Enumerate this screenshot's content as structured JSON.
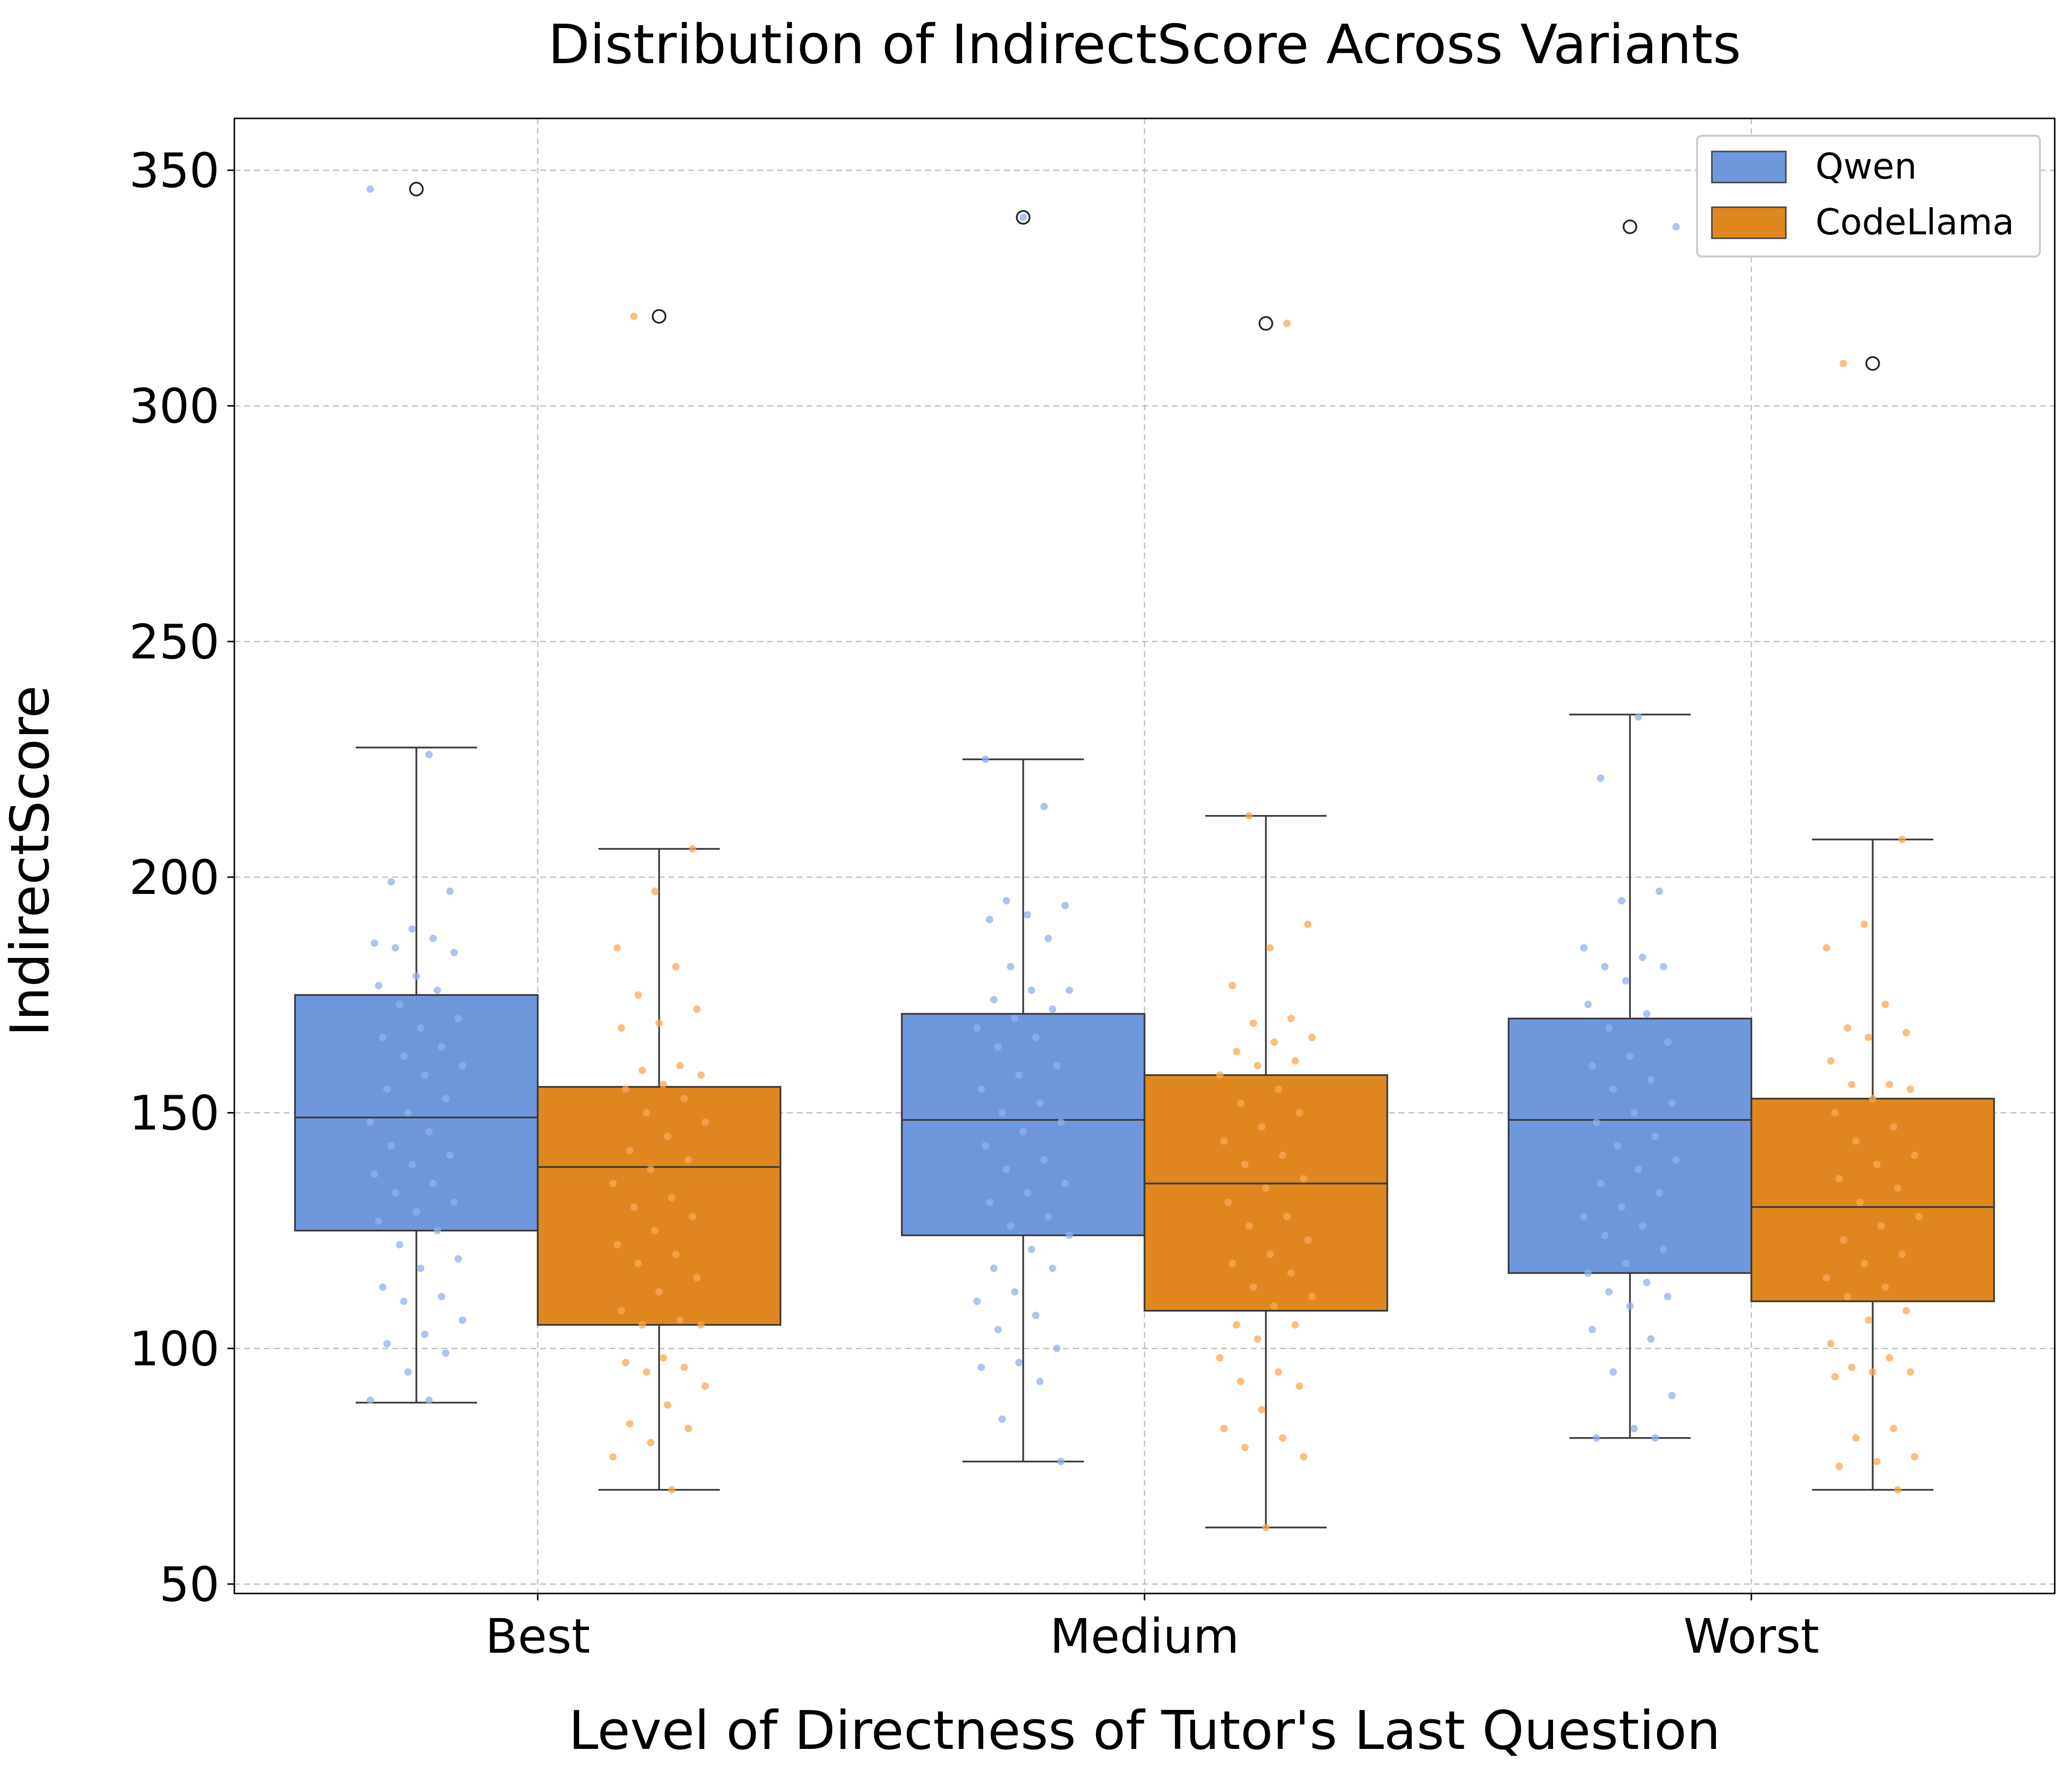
{
  "chart_data": {
    "type": "box",
    "title": "Distribution of IndirectScore Across Variants",
    "xlabel": "Level of Directness of Tutor's Last Question",
    "ylabel": "IndirectScore",
    "categories": [
      "Best",
      "Medium",
      "Worst"
    ],
    "ylim": [
      48,
      361
    ],
    "yticks": [
      50,
      100,
      150,
      200,
      250,
      300,
      350
    ],
    "ytick_labels": [
      "50",
      "100",
      "150",
      "200",
      "250",
      "300",
      "350"
    ],
    "grid": true,
    "legend_position": "top-right",
    "series": [
      {
        "name": "Qwen",
        "color": "#6f98dc",
        "point_color": "#8fb0ee",
        "boxes": [
          {
            "whisker_low": 88.5,
            "q1": 125,
            "median": 149,
            "q3": 175,
            "whisker_high": 227.5,
            "outliers": [
              346
            ]
          },
          {
            "whisker_low": 76,
            "q1": 124,
            "median": 148.5,
            "q3": 171,
            "whisker_high": 225,
            "outliers": [
              340
            ]
          },
          {
            "whisker_low": 81,
            "q1": 116,
            "median": 148.5,
            "q3": 170,
            "whisker_high": 234.5,
            "outliers": [
              338
            ]
          }
        ],
        "points": [
          [
            346,
            226,
            199,
            197,
            189,
            186,
            187,
            185,
            184,
            179,
            177,
            176,
            173,
            170,
            168,
            166,
            164,
            162,
            160,
            158,
            155,
            153,
            150,
            148,
            146,
            143,
            141,
            139,
            137,
            135,
            133,
            131,
            129,
            127,
            125,
            122,
            119,
            117,
            113,
            111,
            110,
            106,
            103,
            101,
            99,
            95,
            89,
            89
          ],
          [
            340,
            225,
            215,
            195,
            194,
            192,
            191,
            187,
            181,
            176,
            176,
            174,
            172,
            170,
            168,
            166,
            164,
            160,
            158,
            155,
            152,
            150,
            148,
            146,
            143,
            140,
            138,
            135,
            133,
            131,
            128,
            126,
            124,
            121,
            117,
            117,
            112,
            110,
            107,
            104,
            100,
            97,
            96,
            93,
            85,
            76
          ],
          [
            338,
            234,
            221,
            197,
            195,
            185,
            183,
            181,
            181,
            178,
            173,
            171,
            168,
            165,
            162,
            160,
            157,
            155,
            152,
            150,
            148,
            145,
            143,
            140,
            138,
            135,
            133,
            130,
            128,
            126,
            124,
            121,
            118,
            116,
            114,
            112,
            111,
            109,
            104,
            102,
            95,
            90,
            83,
            81,
            81
          ]
        ]
      },
      {
        "name": "CodeLlama",
        "color": "#e0881f",
        "point_color": "#f8a855",
        "boxes": [
          {
            "whisker_low": 70,
            "q1": 105,
            "median": 138.5,
            "q3": 155.5,
            "whisker_high": 206,
            "outliers": [
              319
            ]
          },
          {
            "whisker_low": 62,
            "q1": 108,
            "median": 135,
            "q3": 158,
            "whisker_high": 213,
            "outliers": [
              317.5
            ]
          },
          {
            "whisker_low": 70,
            "q1": 110,
            "median": 130,
            "q3": 153,
            "whisker_high": 208,
            "outliers": [
              309
            ]
          }
        ],
        "points": [
          [
            319,
            206,
            197,
            185,
            181,
            175,
            172,
            169,
            168,
            160,
            159,
            158,
            156,
            155,
            153,
            150,
            148,
            145,
            142,
            140,
            138,
            135,
            132,
            130,
            128,
            125,
            122,
            120,
            118,
            115,
            112,
            108,
            106,
            105,
            105,
            98,
            97,
            96,
            95,
            92,
            88,
            84,
            83,
            80,
            77,
            70
          ],
          [
            317.5,
            213,
            190,
            185,
            177,
            170,
            169,
            166,
            165,
            163,
            161,
            160,
            158,
            155,
            152,
            150,
            147,
            144,
            141,
            139,
            136,
            134,
            131,
            128,
            126,
            123,
            120,
            118,
            116,
            113,
            111,
            109,
            105,
            105,
            102,
            98,
            95,
            93,
            92,
            87,
            83,
            81,
            79,
            77,
            62
          ],
          [
            309,
            208,
            190,
            185,
            173,
            168,
            167,
            166,
            161,
            156,
            156,
            155,
            153,
            150,
            147,
            144,
            141,
            139,
            136,
            134,
            131,
            128,
            126,
            123,
            120,
            118,
            115,
            113,
            111,
            108,
            106,
            101,
            98,
            96,
            95,
            95,
            94,
            83,
            81,
            77,
            76,
            75,
            70
          ]
        ]
      }
    ]
  }
}
